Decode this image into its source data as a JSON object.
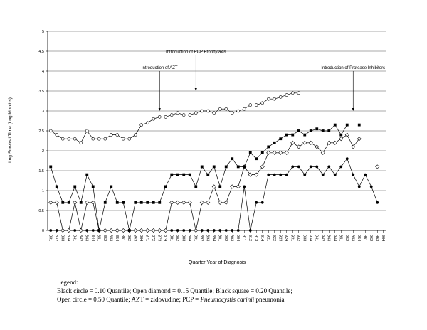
{
  "chart_data": {
    "type": "line",
    "xlabel": "Quarter Year of Diagnosis",
    "ylabel": "Log Survival Time (Log Months)",
    "ylim": [
      0,
      5
    ],
    "yticks": [
      "0",
      "0.5",
      "1",
      "1.5",
      "2",
      "2.5",
      "3",
      "3.5",
      "4",
      "4.5",
      "5"
    ],
    "grid": true,
    "categories": [
      "831",
      "832",
      "833",
      "834",
      "841",
      "842",
      "843",
      "844",
      "851",
      "852",
      "853",
      "854",
      "861",
      "862",
      "863",
      "864",
      "871",
      "872",
      "873",
      "874",
      "881",
      "882",
      "883",
      "884",
      "891",
      "892",
      "893",
      "894",
      "901",
      "902",
      "903",
      "904",
      "911",
      "912",
      "913",
      "914",
      "921",
      "922",
      "923",
      "924",
      "931",
      "932",
      "933",
      "934",
      "941",
      "942",
      "943",
      "944",
      "951",
      "952",
      "953",
      "954",
      "961",
      "962",
      "963",
      "964"
    ],
    "annotations": [
      {
        "text": "Introduction of AZT",
        "category": "873",
        "text_y": 4.0,
        "arrow_to_y": 3.0
      },
      {
        "text": "Introduction of PCP Prophylaxis",
        "category": "891",
        "text_y": 4.4,
        "arrow_to_y": 3.5
      },
      {
        "text": "Introduction of Protease Inhibitors",
        "category": "953",
        "text_y": 4.0,
        "arrow_to_y": 3.0
      }
    ],
    "series": [
      {
        "marker": "filled-circle",
        "values": [
          0,
          0,
          0,
          0,
          0,
          0,
          0,
          0,
          0,
          0,
          0,
          0,
          0,
          0,
          0,
          0,
          0,
          0,
          0,
          0,
          0,
          0,
          0,
          0,
          0,
          0,
          0,
          0,
          0,
          0,
          0,
          0,
          1.1,
          0,
          0.7,
          0.7,
          1.4,
          1.4,
          1.4,
          1.4,
          1.6,
          1.6,
          1.4,
          1.6,
          1.6,
          1.4,
          1.6,
          1.4,
          1.6,
          1.8,
          1.4,
          1.1,
          1.4,
          1.1,
          0.7,
          null
        ]
      },
      {
        "marker": "open-diamond",
        "values": [
          0.7,
          0.7,
          0,
          0,
          0.7,
          0,
          0.7,
          0.7,
          0,
          0,
          0,
          0,
          0,
          0,
          0,
          0,
          0,
          0,
          0,
          0,
          0.7,
          0.7,
          0.7,
          0.7,
          0,
          0.7,
          0.7,
          1.1,
          0.7,
          0.7,
          1.1,
          1.1,
          1.6,
          1.4,
          1.4,
          1.6,
          1.95,
          1.95,
          1.95,
          1.95,
          2.2,
          2.1,
          2.2,
          2.2,
          2.1,
          1.95,
          2.2,
          2.2,
          2.3,
          2.4,
          2.1,
          2.3,
          null,
          null,
          1.6,
          null
        ]
      },
      {
        "marker": "filled-square",
        "values": [
          1.6,
          1.1,
          0.7,
          0.7,
          1.1,
          0.7,
          1.4,
          1.1,
          0,
          0.7,
          1.1,
          0.7,
          0.7,
          0,
          0.7,
          0.7,
          0.7,
          0.7,
          0.7,
          1.1,
          1.4,
          1.4,
          1.4,
          1.4,
          1.1,
          1.6,
          1.4,
          1.6,
          1.1,
          1.6,
          1.8,
          1.6,
          1.6,
          1.95,
          1.8,
          1.95,
          2.1,
          2.2,
          2.3,
          2.4,
          2.4,
          2.5,
          2.4,
          2.5,
          2.55,
          2.5,
          2.5,
          2.65,
          2.4,
          2.65,
          null,
          2.65,
          null,
          null,
          null,
          null
        ]
      },
      {
        "marker": "open-circle",
        "values": [
          2.5,
          2.4,
          2.3,
          2.3,
          2.3,
          2.2,
          2.5,
          2.3,
          2.3,
          2.3,
          2.4,
          2.4,
          2.3,
          2.3,
          2.4,
          2.65,
          2.7,
          2.8,
          2.85,
          2.85,
          2.9,
          2.95,
          2.9,
          2.9,
          2.95,
          3.0,
          3.0,
          2.95,
          3.05,
          3.05,
          2.95,
          3.0,
          3.05,
          3.15,
          3.15,
          3.2,
          3.3,
          3.3,
          3.35,
          3.4,
          3.45,
          3.45,
          null,
          null,
          null,
          null,
          null,
          null,
          null,
          null,
          null,
          null,
          null,
          null,
          null,
          null
        ]
      }
    ]
  },
  "legend": {
    "title": "Legend:",
    "line1": "Black circle = 0.10 Quantile; Open diamond = 0.15 Quantile; Black square = 0.20 Quantile;",
    "line2_prefix": "Open circle = 0.50 Quantile; AZT = zidovudine; PCP = ",
    "line2_italic": "Pneumocystis carinii",
    "line2_suffix": " pneumonia"
  }
}
